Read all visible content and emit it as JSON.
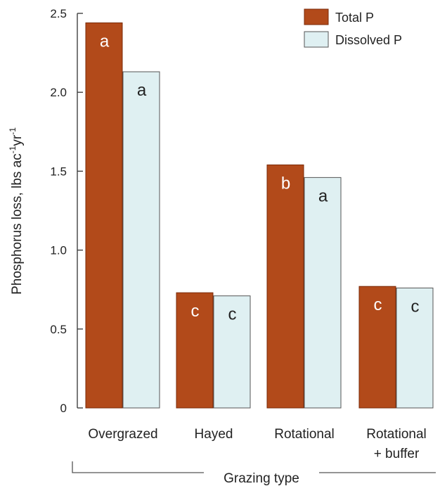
{
  "chart_data": {
    "type": "bar",
    "ylabel": "Phosphorus loss, lbs ac",
    "ylabel_sup1": "-1",
    "ylabel_mid": "yr",
    "ylabel_sup2": "-1",
    "xlabel": "Grazing type",
    "ylim": [
      0,
      2.5
    ],
    "yticks": [
      "0",
      "0.5",
      "1.0",
      "1.5",
      "2.0",
      "2.5"
    ],
    "categories": [
      [
        "Overgrazed"
      ],
      [
        "Hayed"
      ],
      [
        "Rotational"
      ],
      [
        "Rotational",
        "+ buffer"
      ]
    ],
    "series": [
      {
        "name": "Total P",
        "color": "#b24a1a",
        "values": [
          2.44,
          0.73,
          1.54,
          0.77
        ],
        "letters": [
          "a",
          "c",
          "b",
          "c"
        ],
        "letter_color": "#ffffff"
      },
      {
        "name": "Dissolved P",
        "color": "#dff0f2",
        "values": [
          2.13,
          0.71,
          1.46,
          0.76
        ],
        "letters": [
          "a",
          "c",
          "a",
          "c"
        ],
        "letter_color": "#222222"
      }
    ],
    "legend_position": "top-right",
    "grid": false
  }
}
